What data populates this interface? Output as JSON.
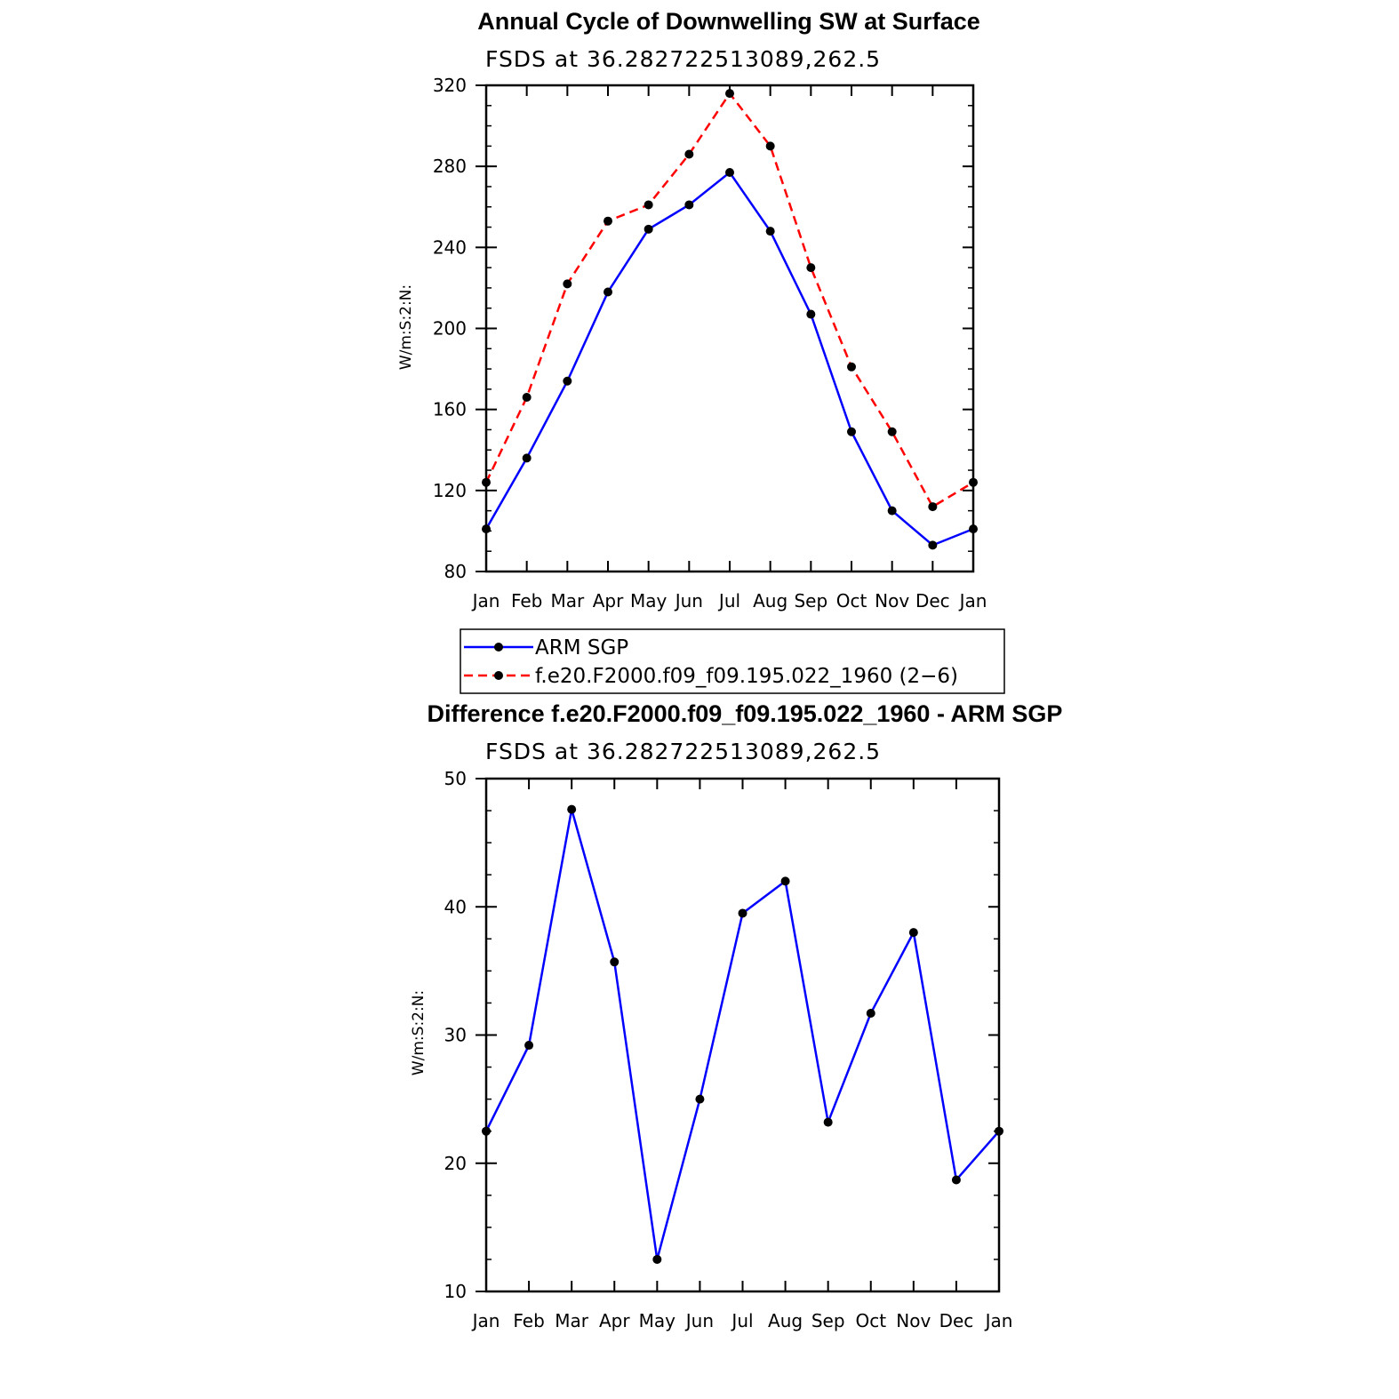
{
  "chart_data": [
    {
      "type": "line",
      "title": "Annual Cycle of Downwelling SW at Surface",
      "subtitle": "FSDS at 36.282722513089,262.5",
      "ylabel": "W/m:S:2:N:",
      "xlabel": "",
      "categories": [
        "Jan",
        "Feb",
        "Mar",
        "Apr",
        "May",
        "Jun",
        "Jul",
        "Aug",
        "Sep",
        "Oct",
        "Nov",
        "Dec",
        "Jan"
      ],
      "ylim": [
        80,
        320
      ],
      "yticks": [
        80,
        120,
        160,
        200,
        240,
        280,
        320
      ],
      "series": [
        {
          "name": "ARM SGP",
          "color": "#0000ff",
          "dash": "solid",
          "values": [
            101,
            136,
            174,
            218,
            249,
            261,
            277,
            248,
            207,
            149,
            110,
            93,
            101
          ]
        },
        {
          "name": "f.e20.F2000.f09_f09.195.022_1960 (2−6)",
          "color": "#ff0000",
          "dash": "dashed",
          "values": [
            124,
            166,
            222,
            253,
            261,
            286,
            316,
            290,
            230,
            181,
            149,
            112,
            124
          ]
        }
      ],
      "legend": "below"
    },
    {
      "type": "line",
      "title": "Difference f.e20.F2000.f09_f09.195.022_1960 - ARM SGP",
      "subtitle": "FSDS at 36.282722513089,262.5",
      "ylabel": "W/m:S:2:N:",
      "xlabel": "",
      "categories": [
        "Jan",
        "Feb",
        "Mar",
        "Apr",
        "May",
        "Jun",
        "Jul",
        "Aug",
        "Sep",
        "Oct",
        "Nov",
        "Dec",
        "Jan"
      ],
      "ylim": [
        10,
        50
      ],
      "yticks": [
        10,
        20,
        30,
        40,
        50
      ],
      "series": [
        {
          "color": "#0000ff",
          "dash": "solid",
          "values": [
            22.5,
            29.2,
            47.6,
            35.7,
            12.5,
            25.0,
            39.5,
            42.0,
            23.2,
            31.7,
            38.0,
            18.7,
            22.5
          ]
        }
      ]
    }
  ]
}
